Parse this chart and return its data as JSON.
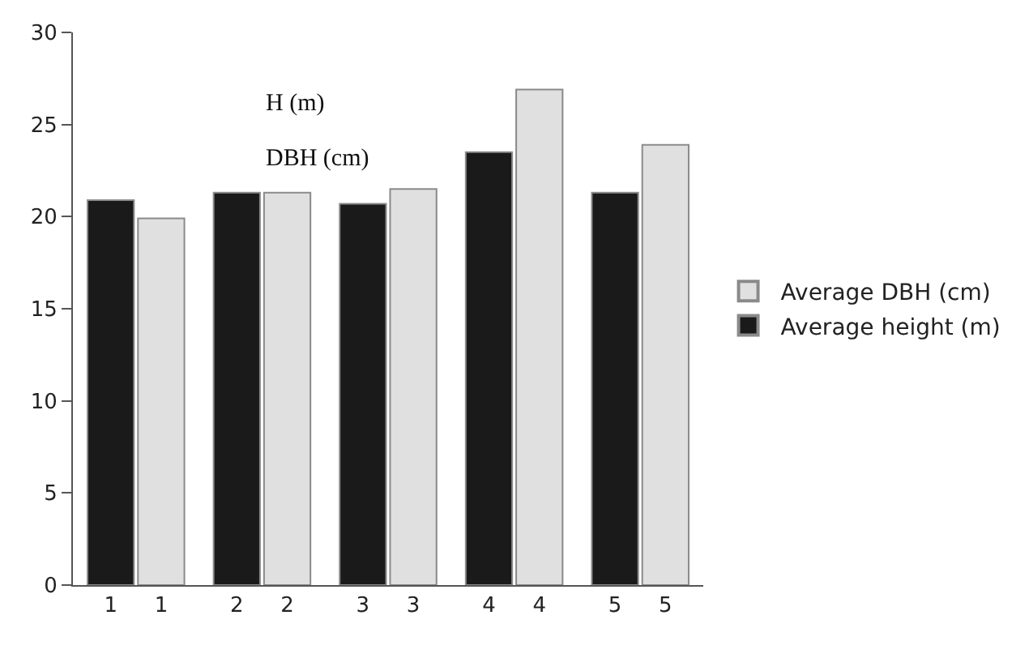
{
  "chart_data": {
    "type": "bar",
    "categories": [
      "1",
      "2",
      "3",
      "4",
      "5"
    ],
    "series": [
      {
        "name": "Average height (m)",
        "color": "#1a1a1a",
        "values": [
          20.9,
          21.3,
          20.7,
          23.5,
          21.3
        ]
      },
      {
        "name": "Average DBH (cm)",
        "color": "#e0e0e0",
        "values": [
          19.9,
          21.3,
          21.5,
          26.9,
          23.9
        ]
      }
    ],
    "annotations": [
      "H (m)",
      "DBH (cm)"
    ],
    "ylim": [
      0,
      30
    ],
    "yticks": [
      0,
      5,
      10,
      15,
      20,
      25,
      30
    ],
    "legend": "right"
  }
}
